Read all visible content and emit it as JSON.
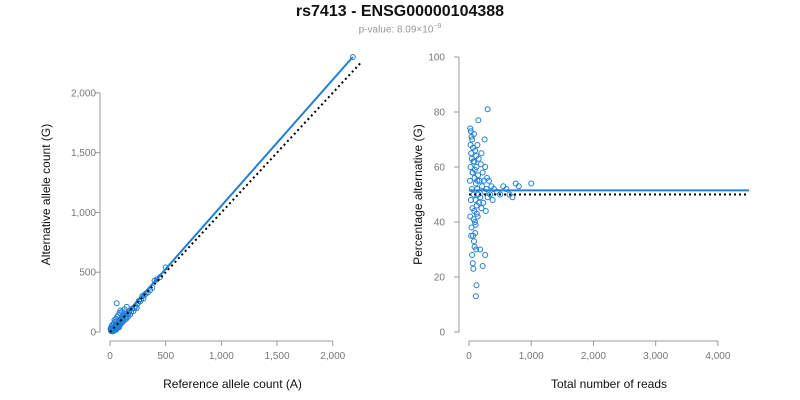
{
  "title": "rs7413 - ENSG00000104388",
  "subtitle": {
    "prefix": "p-value: ",
    "mantissa": "8.09×10",
    "exponent": "−9"
  },
  "chart_data": [
    {
      "type": "scatter",
      "xlabel": "Reference allele count (A)",
      "ylabel": "Alternative allele count (G)",
      "xlim": [
        0,
        2200
      ],
      "ylim": [
        0,
        2300
      ],
      "xticks": [
        0,
        500,
        1000,
        1500,
        2000
      ],
      "xtick_labels": [
        "0",
        "500",
        "1,000",
        "1,500",
        "2,000"
      ],
      "yticks": [
        0,
        500,
        1000,
        1500,
        2000
      ],
      "ytick_labels": [
        "0",
        "500",
        "1,000",
        "1,500",
        "2,000"
      ],
      "grid": false,
      "marker_color": "#1f7fd6",
      "fit_line": {
        "color": "#1f7fd6",
        "style": "solid",
        "from": [
          0,
          0
        ],
        "to": [
          2180,
          2300
        ]
      },
      "reference_line": {
        "color": "#000000",
        "style": "dotted",
        "from": [
          0,
          0
        ],
        "to": [
          2250,
          2250
        ]
      },
      "points": [
        [
          10,
          8
        ],
        [
          14,
          20
        ],
        [
          18,
          12
        ],
        [
          22,
          30
        ],
        [
          25,
          5
        ],
        [
          28,
          18
        ],
        [
          30,
          40
        ],
        [
          33,
          22
        ],
        [
          35,
          10
        ],
        [
          38,
          28
        ],
        [
          40,
          35
        ],
        [
          42,
          15
        ],
        [
          45,
          50
        ],
        [
          48,
          25
        ],
        [
          50,
          60
        ],
        [
          52,
          40
        ],
        [
          55,
          20
        ],
        [
          58,
          45
        ],
        [
          60,
          70
        ],
        [
          62,
          30
        ],
        [
          65,
          55
        ],
        [
          68,
          80
        ],
        [
          70,
          45
        ],
        [
          72,
          35
        ],
        [
          75,
          65
        ],
        [
          78,
          90
        ],
        [
          80,
          55
        ],
        [
          82,
          40
        ],
        [
          85,
          75
        ],
        [
          88,
          100
        ],
        [
          90,
          60
        ],
        [
          92,
          85
        ],
        [
          95,
          110
        ],
        [
          98,
          70
        ],
        [
          100,
          95
        ],
        [
          105,
          120
        ],
        [
          108,
          80
        ],
        [
          110,
          105
        ],
        [
          115,
          130
        ],
        [
          118,
          90
        ],
        [
          120,
          115
        ],
        [
          125,
          140
        ],
        [
          130,
          100
        ],
        [
          135,
          125
        ],
        [
          140,
          150
        ],
        [
          145,
          110
        ],
        [
          150,
          135
        ],
        [
          155,
          160
        ],
        [
          160,
          125
        ],
        [
          165,
          150
        ],
        [
          170,
          175
        ],
        [
          180,
          145
        ],
        [
          190,
          170
        ],
        [
          200,
          195
        ],
        [
          210,
          175
        ],
        [
          220,
          200
        ],
        [
          230,
          215
        ],
        [
          240,
          200
        ],
        [
          250,
          240
        ],
        [
          260,
          260
        ],
        [
          270,
          255
        ],
        [
          280,
          275
        ],
        [
          290,
          300
        ],
        [
          300,
          280
        ],
        [
          310,
          310
        ],
        [
          320,
          320
        ],
        [
          340,
          330
        ],
        [
          360,
          350
        ],
        [
          380,
          370
        ],
        [
          400,
          430
        ],
        [
          420,
          440
        ],
        [
          450,
          460
        ],
        [
          500,
          540
        ],
        [
          60,
          240
        ],
        [
          40,
          100
        ],
        [
          20,
          60
        ],
        [
          15,
          35
        ],
        [
          12,
          45
        ],
        [
          8,
          15
        ],
        [
          5,
          25
        ],
        [
          35,
          70
        ],
        [
          45,
          85
        ],
        [
          55,
          110
        ],
        [
          65,
          130
        ],
        [
          75,
          140
        ],
        [
          85,
          160
        ],
        [
          95,
          180
        ],
        [
          130,
          190
        ],
        [
          110,
          170
        ],
        [
          150,
          210
        ],
        [
          2180,
          2300
        ]
      ]
    },
    {
      "type": "scatter",
      "xlabel": "Total number of reads",
      "ylabel": "Percentage alternative (G)",
      "xlim": [
        0,
        4500
      ],
      "ylim": [
        0,
        100
      ],
      "xticks": [
        0,
        1000,
        2000,
        3000,
        4000
      ],
      "xtick_labels": [
        "0",
        "1,000",
        "2,000",
        "3,000",
        "4,000"
      ],
      "yticks": [
        0,
        20,
        40,
        60,
        80,
        100
      ],
      "ytick_labels": [
        "0",
        "20",
        "40",
        "60",
        "80",
        "100"
      ],
      "grid": false,
      "marker_color": "#1f7fd6",
      "fit_line": {
        "color": "#1f7fd6",
        "style": "solid",
        "from": [
          0,
          51.5
        ],
        "to": [
          4500,
          51.5
        ]
      },
      "reference_line": {
        "color": "#000000",
        "style": "dotted",
        "from": [
          0,
          50
        ],
        "to": [
          4500,
          50
        ]
      },
      "points": [
        [
          15,
          55
        ],
        [
          20,
          42
        ],
        [
          25,
          60
        ],
        [
          30,
          48
        ],
        [
          35,
          65
        ],
        [
          40,
          38
        ],
        [
          45,
          52
        ],
        [
          50,
          70
        ],
        [
          55,
          45
        ],
        [
          60,
          58
        ],
        [
          65,
          35
        ],
        [
          70,
          62
        ],
        [
          75,
          50
        ],
        [
          80,
          72
        ],
        [
          85,
          44
        ],
        [
          90,
          56
        ],
        [
          95,
          40
        ],
        [
          100,
          66
        ],
        [
          105,
          48
        ],
        [
          110,
          54
        ],
        [
          115,
          30
        ],
        [
          120,
          60
        ],
        [
          125,
          46
        ],
        [
          130,
          52
        ],
        [
          135,
          68
        ],
        [
          140,
          42
        ],
        [
          145,
          57
        ],
        [
          150,
          50
        ],
        [
          155,
          63
        ],
        [
          160,
          47
        ],
        [
          170,
          55
        ],
        [
          180,
          49
        ],
        [
          190,
          61
        ],
        [
          200,
          45
        ],
        [
          210,
          53
        ],
        [
          220,
          58
        ],
        [
          230,
          47
        ],
        [
          240,
          55
        ],
        [
          250,
          51
        ],
        [
          260,
          60
        ],
        [
          270,
          44
        ],
        [
          280,
          52
        ],
        [
          290,
          56
        ],
        [
          300,
          49
        ],
        [
          320,
          55
        ],
        [
          340,
          50
        ],
        [
          360,
          53
        ],
        [
          380,
          48
        ],
        [
          400,
          52
        ],
        [
          450,
          51
        ],
        [
          500,
          50
        ],
        [
          550,
          53
        ],
        [
          600,
          52
        ],
        [
          650,
          50
        ],
        [
          700,
          49
        ],
        [
          750,
          54
        ],
        [
          800,
          53
        ],
        [
          1000,
          54
        ],
        [
          20,
          74
        ],
        [
          30,
          73
        ],
        [
          40,
          71
        ],
        [
          50,
          28
        ],
        [
          60,
          25
        ],
        [
          70,
          23
        ],
        [
          80,
          33
        ],
        [
          90,
          31
        ],
        [
          100,
          36
        ],
        [
          110,
          13
        ],
        [
          120,
          17
        ],
        [
          150,
          77
        ],
        [
          180,
          30
        ],
        [
          200,
          65
        ],
        [
          250,
          70
        ],
        [
          300,
          81
        ],
        [
          220,
          24
        ],
        [
          260,
          28
        ],
        [
          25,
          68
        ],
        [
          35,
          35
        ],
        [
          45,
          63
        ],
        [
          55,
          58
        ],
        [
          65,
          67
        ],
        [
          75,
          41
        ],
        [
          85,
          62
        ],
        [
          95,
          59
        ],
        [
          105,
          39
        ],
        [
          115,
          64
        ],
        [
          125,
          43
        ],
        [
          135,
          55
        ]
      ]
    }
  ]
}
